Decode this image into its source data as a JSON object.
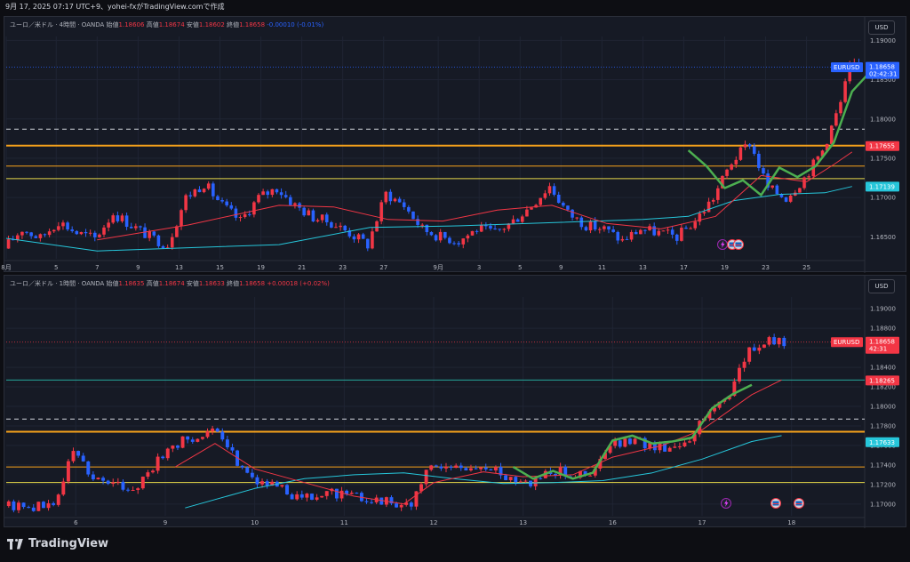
{
  "header": {
    "text": "9月 17, 2025 07:17 UTC+9、yohei-fxがTradingView.comで作成"
  },
  "footer": {
    "brand": "TradingView"
  },
  "chart_data": [
    {
      "type": "candlestick",
      "symbol": "EURUSD",
      "legend": {
        "name": "ユーロ／米ドル · 4時間 · OANDA",
        "open_label": "始値",
        "open": "1.18606",
        "high_label": "高値",
        "high": "1.18674",
        "low_label": "安値",
        "low": "1.18602",
        "close_label": "終値",
        "close": "1.18658",
        "change": "-0.00010 (-0.01%)"
      },
      "currency": "USD",
      "ylim": [
        1.1622,
        1.1905
      ],
      "yticks": [
        "1.19000",
        "1.18500",
        "1.18000",
        "1.17500",
        "1.17000",
        "1.16500"
      ],
      "ytick_values": [
        1.19,
        1.185,
        1.18,
        1.175,
        1.17,
        1.165
      ],
      "xticks": [
        "8月",
        "5",
        "7",
        "9",
        "13",
        "15",
        "19",
        "21",
        "23",
        "27",
        "9月",
        "3",
        "5",
        "9",
        "11",
        "13",
        "17",
        "19",
        "23",
        "25"
      ],
      "xtick_index": [
        0,
        11,
        20,
        29,
        38,
        47,
        56,
        65,
        74,
        83,
        95,
        104,
        113,
        122,
        131,
        140,
        149,
        158,
        167,
        176
      ],
      "x_range": [
        0,
        188
      ],
      "price_labels": [
        {
          "symbol": "EURUSD",
          "value": "1.18658",
          "countdown": "02:42:31",
          "color": "#2962ff"
        },
        {
          "value": "1.17655",
          "color": "#f23645"
        },
        {
          "value": "1.17139",
          "color": "#26c6da"
        }
      ],
      "hlines": [
        {
          "value": 1.1787,
          "color": "#d1d4dc",
          "style": "dashed"
        },
        {
          "value": 1.1766,
          "color": "#f7a21b",
          "style": "solid-thick"
        },
        {
          "value": 1.174,
          "color": "#f7a21b",
          "style": "solid"
        },
        {
          "value": 1.1724,
          "color": "#e6d84a",
          "style": "solid"
        }
      ],
      "path": [
        [
          0,
          1.1635
        ],
        [
          4,
          1.166
        ],
        [
          8,
          1.1648
        ],
        [
          12,
          1.167
        ],
        [
          16,
          1.1655
        ],
        [
          20,
          1.1648
        ],
        [
          24,
          1.168
        ],
        [
          28,
          1.1665
        ],
        [
          32,
          1.165
        ],
        [
          36,
          1.164
        ],
        [
          40,
          1.17
        ],
        [
          44,
          1.1718
        ],
        [
          48,
          1.169
        ],
        [
          52,
          1.167
        ],
        [
          56,
          1.17
        ],
        [
          60,
          1.1712
        ],
        [
          64,
          1.169
        ],
        [
          68,
          1.1675
        ],
        [
          72,
          1.1668
        ],
        [
          76,
          1.1655
        ],
        [
          80,
          1.164
        ],
        [
          84,
          1.1705
        ],
        [
          88,
          1.169
        ],
        [
          92,
          1.166
        ],
        [
          96,
          1.165
        ],
        [
          100,
          1.1645
        ],
        [
          104,
          1.166
        ],
        [
          108,
          1.1655
        ],
        [
          112,
          1.167
        ],
        [
          116,
          1.169
        ],
        [
          120,
          1.1715
        ],
        [
          124,
          1.168
        ],
        [
          128,
          1.1665
        ],
        [
          132,
          1.166
        ],
        [
          136,
          1.1645
        ],
        [
          140,
          1.166
        ],
        [
          144,
          1.1655
        ],
        [
          148,
          1.165
        ],
        [
          152,
          1.167
        ],
        [
          156,
          1.17
        ],
        [
          160,
          1.1745
        ],
        [
          164,
          1.177
        ],
        [
          168,
          1.1712
        ],
        [
          172,
          1.17
        ],
        [
          176,
          1.1725
        ],
        [
          180,
          1.176
        ],
        [
          184,
          1.182
        ],
        [
          186,
          1.1866
        ]
      ],
      "candle_count": 188,
      "ma_slow": [
        [
          0,
          1.1648
        ],
        [
          20,
          1.1632
        ],
        [
          40,
          1.1636
        ],
        [
          60,
          1.164
        ],
        [
          80,
          1.1662
        ],
        [
          100,
          1.1664
        ],
        [
          120,
          1.1668
        ],
        [
          130,
          1.167
        ],
        [
          140,
          1.1672
        ],
        [
          150,
          1.1676
        ],
        [
          160,
          1.1696
        ],
        [
          170,
          1.1704
        ],
        [
          180,
          1.1706
        ],
        [
          186,
          1.1714
        ]
      ],
      "ma_fast": [
        [
          20,
          1.1646
        ],
        [
          40,
          1.1665
        ],
        [
          60,
          1.169
        ],
        [
          72,
          1.1688
        ],
        [
          84,
          1.1672
        ],
        [
          96,
          1.167
        ],
        [
          108,
          1.1684
        ],
        [
          120,
          1.169
        ],
        [
          132,
          1.1667
        ],
        [
          144,
          1.166
        ],
        [
          156,
          1.1676
        ],
        [
          166,
          1.1728
        ],
        [
          176,
          1.172
        ],
        [
          182,
          1.1742
        ],
        [
          186,
          1.1758
        ]
      ],
      "ma_green": [
        [
          150,
          1.176
        ],
        [
          154,
          1.174
        ],
        [
          158,
          1.1712
        ],
        [
          162,
          1.1722
        ],
        [
          166,
          1.1703
        ],
        [
          170,
          1.1738
        ],
        [
          174,
          1.1726
        ],
        [
          178,
          1.174
        ],
        [
          182,
          1.177
        ],
        [
          186,
          1.1835
        ],
        [
          190,
          1.186
        ]
      ]
    },
    {
      "type": "candlestick",
      "symbol": "EURUSD",
      "legend": {
        "name": "ユーロ／米ドル · 1時間 · OANDA",
        "open_label": "始値",
        "open": "1.18635",
        "high_label": "高値",
        "high": "1.18674",
        "low_label": "安値",
        "low": "1.18633",
        "close_label": "終値",
        "close": "1.18658",
        "change": "+0.00018 (+0.02%)"
      },
      "currency": "USD",
      "ylim": [
        1.1688,
        1.1912
      ],
      "yticks": [
        "1.19000",
        "1.18800",
        "1.18600",
        "1.18400",
        "1.18200",
        "1.18000",
        "1.17800",
        "1.17600",
        "1.17400",
        "1.17200",
        "1.17000"
      ],
      "ytick_values": [
        1.19,
        1.188,
        1.186,
        1.184,
        1.182,
        1.18,
        1.178,
        1.176,
        1.174,
        1.172,
        1.17
      ],
      "xticks": [
        "6",
        "9",
        "10",
        "11",
        "12",
        "13",
        "16",
        "17",
        "18"
      ],
      "xtick_index": [
        14,
        32,
        50,
        68,
        86,
        104,
        122,
        140,
        158
      ],
      "x_range": [
        0,
        172
      ],
      "price_labels": [
        {
          "symbol": "EURUSD",
          "value": "1.18658",
          "countdown": "42:31",
          "color": "#f23645"
        },
        {
          "value": "1.18265",
          "color": "#f23645"
        },
        {
          "value": "1.17633",
          "color": "#26c6da"
        }
      ],
      "hlines": [
        {
          "value": 1.1827,
          "color": "#26a69a",
          "style": "solid"
        },
        {
          "value": 1.1787,
          "color": "#d1d4dc",
          "style": "dashed"
        },
        {
          "value": 1.1774,
          "color": "#f7a21b",
          "style": "solid-thick"
        },
        {
          "value": 1.1738,
          "color": "#f7a21b",
          "style": "solid"
        },
        {
          "value": 1.1722,
          "color": "#e6d84a",
          "style": "solid"
        }
      ],
      "path": [
        [
          10,
          1.1698
        ],
        [
          14,
          1.1755
        ],
        [
          18,
          1.1728
        ],
        [
          22,
          1.172
        ],
        [
          26,
          1.1715
        ],
        [
          30,
          1.1738
        ],
        [
          34,
          1.176
        ],
        [
          38,
          1.1768
        ],
        [
          42,
          1.1775
        ],
        [
          46,
          1.175
        ],
        [
          50,
          1.1728
        ],
        [
          54,
          1.1718
        ],
        [
          58,
          1.171
        ],
        [
          62,
          1.1705
        ],
        [
          66,
          1.1712
        ],
        [
          70,
          1.1708
        ],
        [
          74,
          1.1706
        ],
        [
          78,
          1.1702
        ],
        [
          82,
          1.17
        ],
        [
          86,
          1.174
        ],
        [
          90,
          1.1736
        ],
        [
          94,
          1.1738
        ],
        [
          98,
          1.1735
        ],
        [
          102,
          1.1728
        ],
        [
          106,
          1.1722
        ],
        [
          110,
          1.1735
        ],
        [
          114,
          1.1732
        ],
        [
          118,
          1.1728
        ],
        [
          122,
          1.176
        ],
        [
          126,
          1.1764
        ],
        [
          130,
          1.176
        ],
        [
          134,
          1.1758
        ],
        [
          138,
          1.1768
        ],
        [
          142,
          1.1795
        ],
        [
          146,
          1.1815
        ],
        [
          150,
          1.1858
        ],
        [
          154,
          1.1866
        ],
        [
          156,
          1.1866
        ]
      ],
      "candle_count": 157,
      "ma_slow": [
        [
          36,
          1.1696
        ],
        [
          50,
          1.1716
        ],
        [
          60,
          1.1726
        ],
        [
          70,
          1.173
        ],
        [
          80,
          1.1732
        ],
        [
          90,
          1.1726
        ],
        [
          100,
          1.1721
        ],
        [
          110,
          1.1722
        ],
        [
          120,
          1.1724
        ],
        [
          130,
          1.1732
        ],
        [
          140,
          1.1746
        ],
        [
          150,
          1.1764
        ],
        [
          156,
          1.177
        ]
      ],
      "ma_fast": [
        [
          34,
          1.1738
        ],
        [
          42,
          1.1762
        ],
        [
          50,
          1.1736
        ],
        [
          60,
          1.1722
        ],
        [
          70,
          1.1708
        ],
        [
          80,
          1.17
        ],
        [
          86,
          1.1722
        ],
        [
          96,
          1.1733
        ],
        [
          104,
          1.1728
        ],
        [
          114,
          1.173
        ],
        [
          122,
          1.1748
        ],
        [
          132,
          1.176
        ],
        [
          140,
          1.1776
        ],
        [
          150,
          1.1812
        ],
        [
          156,
          1.1827
        ]
      ],
      "ma_green": [
        [
          102,
          1.1738
        ],
        [
          106,
          1.1726
        ],
        [
          110,
          1.1734
        ],
        [
          114,
          1.1726
        ],
        [
          118,
          1.1732
        ],
        [
          122,
          1.1765
        ],
        [
          126,
          1.177
        ],
        [
          130,
          1.1762
        ],
        [
          134,
          1.1764
        ],
        [
          138,
          1.1768
        ],
        [
          142,
          1.1798
        ],
        [
          146,
          1.1812
        ],
        [
          150,
          1.1822
        ]
      ]
    }
  ]
}
